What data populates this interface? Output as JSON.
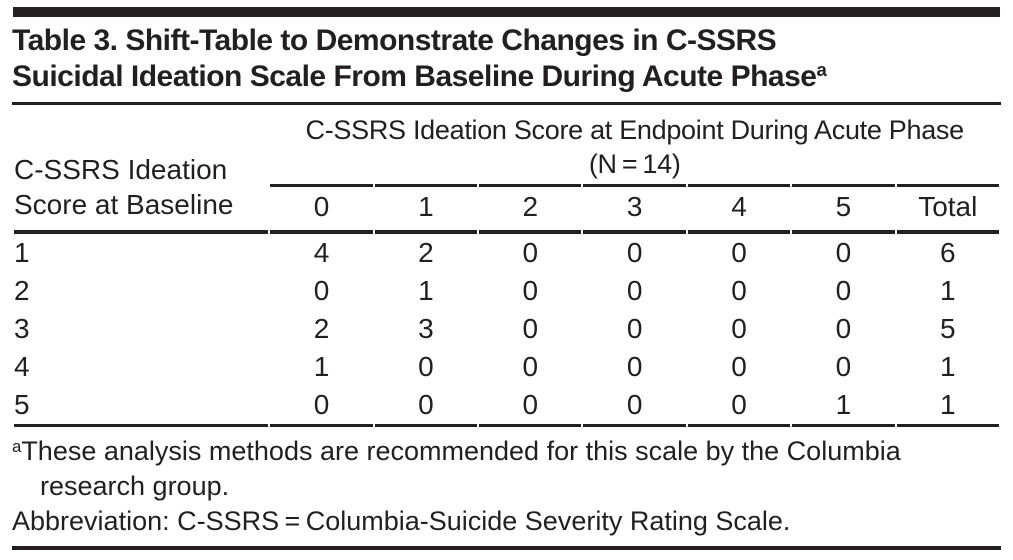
{
  "title": {
    "lines": [
      "Table 3. Shift-Table to Demonstrate Changes in C-SSRS",
      "Suicidal Ideation Scale From Baseline During Acute Phase"
    ],
    "superscript": "a"
  },
  "table": {
    "stub_header_lines": [
      "C-SSRS Ideation",
      "Score at Baseline"
    ],
    "span_header": "C-SSRS Ideation Score at Endpoint During Acute Phase",
    "span_header_sub": "(N = 14)",
    "columns": [
      "0",
      "1",
      "2",
      "3",
      "4",
      "5",
      "Total"
    ],
    "rows": [
      {
        "label": "1",
        "values": [
          "4",
          "2",
          "0",
          "0",
          "0",
          "0",
          "6"
        ]
      },
      {
        "label": "2",
        "values": [
          "0",
          "1",
          "0",
          "0",
          "0",
          "0",
          "1"
        ]
      },
      {
        "label": "3",
        "values": [
          "2",
          "3",
          "0",
          "0",
          "0",
          "0",
          "5"
        ]
      },
      {
        "label": "4",
        "values": [
          "1",
          "0",
          "0",
          "0",
          "0",
          "0",
          "1"
        ]
      },
      {
        "label": "5",
        "values": [
          "0",
          "0",
          "0",
          "0",
          "0",
          "1",
          "1"
        ]
      }
    ]
  },
  "footnotes": {
    "marker": "a",
    "note_lines": [
      "These analysis methods are recommended for this scale by the Columbia",
      "research group."
    ],
    "abbreviation": "Abbreviation: C-SSRS = Columbia-Suicide Severity Rating Scale."
  },
  "colors": {
    "ink": "#231f20",
    "background": "#ffffff"
  }
}
